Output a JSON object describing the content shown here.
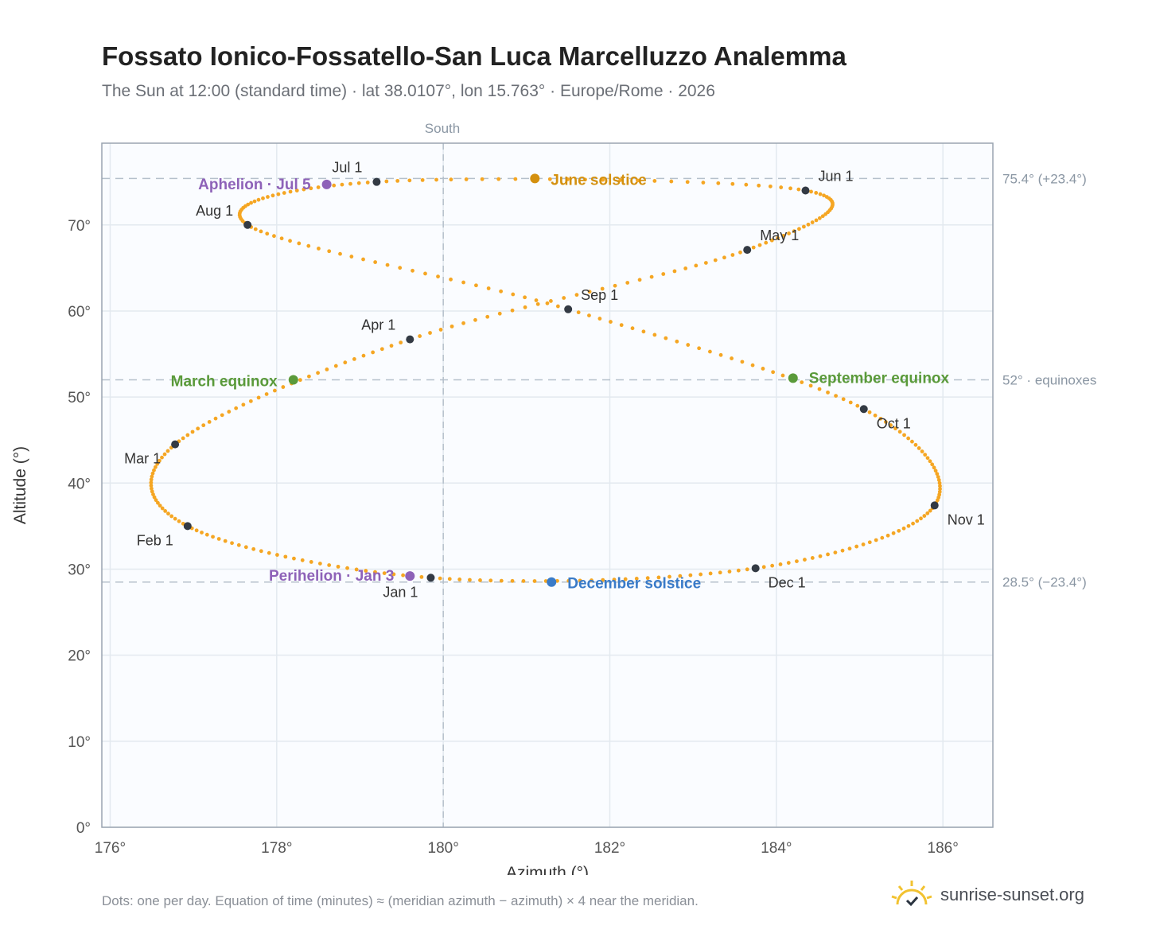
{
  "title": "Fossato Ionico-Fossatello-San Luca Marcelluzzo Analemma",
  "subtitle": "The Sun at 12:00 (standard time) · lat 38.0107°, lon 15.763° · Europe/Rome · 2026",
  "footnote": "Dots: one per day. Equation of time (minutes) ≈ (meridian azimuth − azimuth) × 4 near the meridian.",
  "brand": {
    "name": "sunrise-sunset.org",
    "icon": "sun-check-icon",
    "color": "#f2c230"
  },
  "chart_data": {
    "type": "scatter",
    "xlabel": "Azimuth (°)",
    "ylabel": "Altitude (°)",
    "xlim": [
      175.9,
      186.6
    ],
    "ylim": [
      0,
      79.5
    ],
    "x_ticks": [
      176,
      178,
      180,
      182,
      184,
      186
    ],
    "x_tick_labels": [
      "176°",
      "178°",
      "180°",
      "182°",
      "184°",
      "186°"
    ],
    "y_ticks": [
      0,
      10,
      20,
      30,
      40,
      50,
      60,
      70
    ],
    "y_tick_labels": [
      "0°",
      "10°",
      "20°",
      "30°",
      "40°",
      "50°",
      "60°",
      "70°"
    ],
    "grid": true,
    "meridian": {
      "azimuth": 180,
      "label": "South"
    },
    "reference_lines": [
      {
        "altitude": 75.4,
        "label": "75.4° (+23.4°)"
      },
      {
        "altitude": 52,
        "label": "52° · equinoxes"
      },
      {
        "altitude": 28.5,
        "label": "28.5° (−23.4°)"
      }
    ],
    "path_color": "#f5a623",
    "path_note": "one dot per day",
    "month_markers": [
      {
        "label": "Jan 1",
        "az": 179.85,
        "alt": 29.0
      },
      {
        "label": "Feb 1",
        "az": 176.93,
        "alt": 35.0
      },
      {
        "label": "Mar 1",
        "az": 176.78,
        "alt": 44.5
      },
      {
        "label": "Apr 1",
        "az": 179.6,
        "alt": 56.7
      },
      {
        "label": "May 1",
        "az": 183.65,
        "alt": 67.1
      },
      {
        "label": "Jun 1",
        "az": 184.35,
        "alt": 74.0
      },
      {
        "label": "Jul 1",
        "az": 179.2,
        "alt": 75.0
      },
      {
        "label": "Aug 1",
        "az": 177.65,
        "alt": 70.0
      },
      {
        "label": "Sep 1",
        "az": 181.5,
        "alt": 60.2
      },
      {
        "label": "Oct 1",
        "az": 185.05,
        "alt": 48.6
      },
      {
        "label": "Nov 1",
        "az": 185.9,
        "alt": 37.4
      },
      {
        "label": "Dec 1",
        "az": 183.75,
        "alt": 30.1
      }
    ],
    "events": [
      {
        "label": "June solstice",
        "az": 181.1,
        "alt": 75.4,
        "color": "#d4900e"
      },
      {
        "label": "December solstice",
        "az": 181.3,
        "alt": 28.5,
        "color": "#3a7bc8"
      },
      {
        "label": "March equinox",
        "az": 178.2,
        "alt": 52.0,
        "color": "#5a9a3a"
      },
      {
        "label": "September equinox",
        "az": 184.2,
        "alt": 52.2,
        "color": "#5a9a3a"
      },
      {
        "label": "Aphelion · Jul 5",
        "az": 178.6,
        "alt": 74.7,
        "color": "#8e62b8"
      },
      {
        "label": "Perihelion · Jan 3",
        "az": 179.6,
        "alt": 29.2,
        "color": "#8e62b8"
      }
    ]
  }
}
